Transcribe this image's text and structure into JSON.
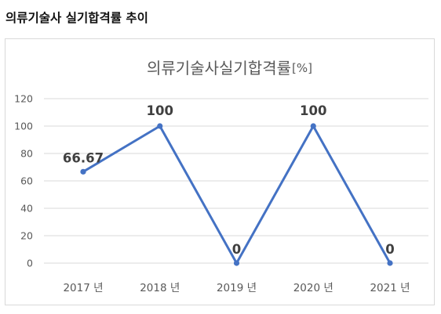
{
  "heading": "의류기술사 실기합격률 추이",
  "colors": {
    "series": "#4472c4",
    "grid": "#d9d9d9",
    "axis_text": "#595959",
    "data_label": "#404040"
  },
  "chart_data": {
    "type": "line",
    "title": "의류기술사실기합격률",
    "title_unit": "[%]",
    "categories": [
      "2017 년",
      "2018 년",
      "2019 년",
      "2020 년",
      "2021 년"
    ],
    "series": [
      {
        "values": [
          66.67,
          100,
          0,
          100,
          0
        ],
        "labels": [
          "66.67",
          "100",
          "0",
          "100",
          "0"
        ]
      }
    ],
    "ylim": [
      0,
      120
    ],
    "yticks": [
      0,
      20,
      40,
      60,
      80,
      100,
      120
    ],
    "ytick_labels": [
      "0",
      "20",
      "40",
      "60",
      "80",
      "100",
      "120"
    ],
    "grid": true,
    "legend": "none",
    "markers": true
  }
}
